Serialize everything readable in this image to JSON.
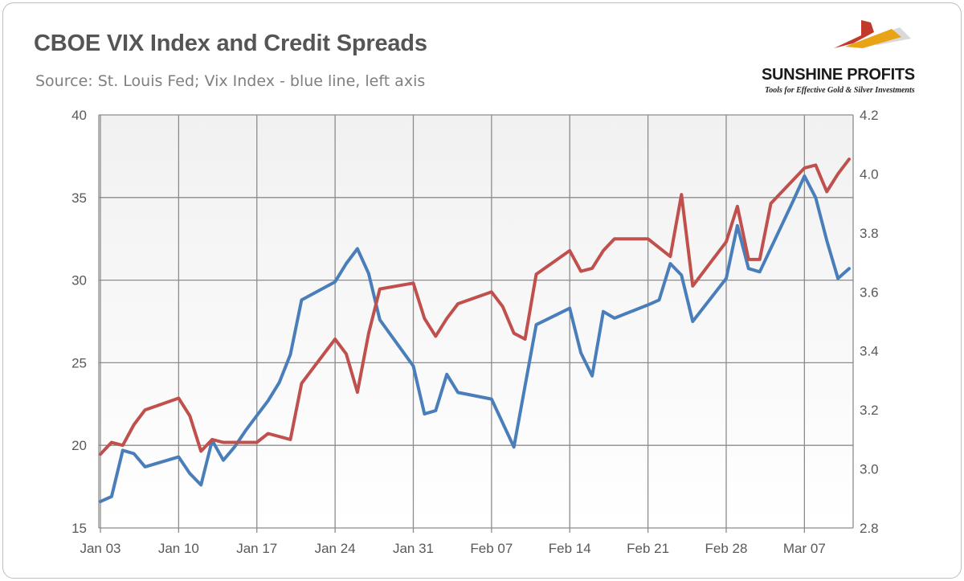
{
  "header": {
    "title": "CBOE VIX Index and Credit Spreads",
    "subtitle": "Source: St. Louis Fed; Vix Index - blue line, left axis"
  },
  "logo": {
    "name": "SUNSHINE PROFITS",
    "tagline": "Tools for Effective Gold & Silver Investments",
    "colors": [
      "#c0392b",
      "#e8a317",
      "#d9d9d9"
    ]
  },
  "chart_data": {
    "type": "line",
    "title": "CBOE VIX Index and Credit Spreads",
    "subtitle": "Source: St. Louis Fed; Vix Index - blue line, left axis",
    "x_ticks": [
      {
        "label": "Jan 03",
        "day": 0
      },
      {
        "label": "Jan 10",
        "day": 7
      },
      {
        "label": "Jan 17",
        "day": 14
      },
      {
        "label": "Jan 24",
        "day": 21
      },
      {
        "label": "Jan 31",
        "day": 28
      },
      {
        "label": "Feb 07",
        "day": 35
      },
      {
        "label": "Feb 14",
        "day": 42
      },
      {
        "label": "Feb 21",
        "day": 49
      },
      {
        "label": "Feb 28",
        "day": 56
      },
      {
        "label": "Mar 07",
        "day": 63
      }
    ],
    "xlim": [
      0,
      67
    ],
    "y_left": {
      "min": 15,
      "max": 40,
      "ticks": [
        15,
        20,
        25,
        30,
        35,
        40
      ]
    },
    "y_right": {
      "min": 2.8,
      "max": 4.2,
      "ticks": [
        "2.8",
        "3.0",
        "3.2",
        "3.4",
        "3.6",
        "3.8",
        "4.0",
        "4.2"
      ]
    },
    "grid": true,
    "legend": "none",
    "series": [
      {
        "axis": "left",
        "color": "#4a7ebb",
        "points": [
          [
            0,
            16.6
          ],
          [
            1,
            16.9
          ],
          [
            2,
            19.7
          ],
          [
            3,
            19.5
          ],
          [
            4,
            18.7
          ],
          [
            7,
            19.3
          ],
          [
            8,
            18.3
          ],
          [
            9,
            17.6
          ],
          [
            10,
            20.3
          ],
          [
            11,
            19.1
          ],
          [
            12,
            19.9
          ],
          [
            13,
            20.9
          ],
          [
            14,
            21.8
          ],
          [
            15,
            22.7
          ],
          [
            16,
            23.8
          ],
          [
            17,
            25.5
          ],
          [
            18,
            28.8
          ],
          [
            21,
            29.9
          ],
          [
            22,
            31.0
          ],
          [
            23,
            31.9
          ],
          [
            24,
            30.4
          ],
          [
            25,
            27.6
          ],
          [
            28,
            24.8
          ],
          [
            29,
            21.9
          ],
          [
            30,
            22.1
          ],
          [
            31,
            24.3
          ],
          [
            32,
            23.2
          ],
          [
            35,
            22.8
          ],
          [
            37,
            19.9
          ],
          [
            39,
            27.3
          ],
          [
            42,
            28.3
          ],
          [
            43,
            25.6
          ],
          [
            44,
            24.2
          ],
          [
            45,
            28.1
          ],
          [
            46,
            27.7
          ],
          [
            49,
            28.5
          ],
          [
            50,
            28.8
          ],
          [
            51,
            31.0
          ],
          [
            52,
            30.3
          ],
          [
            53,
            27.5
          ],
          [
            56,
            30.1
          ],
          [
            57,
            33.3
          ],
          [
            58,
            30.7
          ],
          [
            59,
            30.5
          ],
          [
            62,
            34.8
          ],
          [
            63,
            36.3
          ],
          [
            64,
            35.0
          ],
          [
            65,
            32.4
          ],
          [
            66,
            30.1
          ],
          [
            67,
            30.7
          ]
        ]
      },
      {
        "axis": "right",
        "color": "#c0504d",
        "points": [
          [
            0,
            3.05
          ],
          [
            1,
            3.09
          ],
          [
            2,
            3.08
          ],
          [
            3,
            3.15
          ],
          [
            4,
            3.2
          ],
          [
            7,
            3.24
          ],
          [
            8,
            3.18
          ],
          [
            9,
            3.06
          ],
          [
            10,
            3.1
          ],
          [
            11,
            3.09
          ],
          [
            12,
            3.09
          ],
          [
            14,
            3.09
          ],
          [
            15,
            3.12
          ],
          [
            17,
            3.1
          ],
          [
            18,
            3.29
          ],
          [
            19,
            3.34
          ],
          [
            21,
            3.44
          ],
          [
            22,
            3.39
          ],
          [
            23,
            3.26
          ],
          [
            24,
            3.46
          ],
          [
            25,
            3.61
          ],
          [
            28,
            3.63
          ],
          [
            29,
            3.51
          ],
          [
            30,
            3.45
          ],
          [
            31,
            3.51
          ],
          [
            32,
            3.56
          ],
          [
            35,
            3.6
          ],
          [
            36,
            3.55
          ],
          [
            37,
            3.46
          ],
          [
            38,
            3.44
          ],
          [
            39,
            3.66
          ],
          [
            42,
            3.74
          ],
          [
            43,
            3.67
          ],
          [
            44,
            3.68
          ],
          [
            45,
            3.74
          ],
          [
            46,
            3.78
          ],
          [
            49,
            3.78
          ],
          [
            51,
            3.72
          ],
          [
            52,
            3.93
          ],
          [
            53,
            3.62
          ],
          [
            56,
            3.77
          ],
          [
            57,
            3.89
          ],
          [
            58,
            3.71
          ],
          [
            59,
            3.71
          ],
          [
            60,
            3.9
          ],
          [
            63,
            4.02
          ],
          [
            64,
            4.03
          ],
          [
            65,
            3.94
          ],
          [
            66,
            4.0
          ],
          [
            67,
            4.05
          ]
        ]
      }
    ]
  }
}
